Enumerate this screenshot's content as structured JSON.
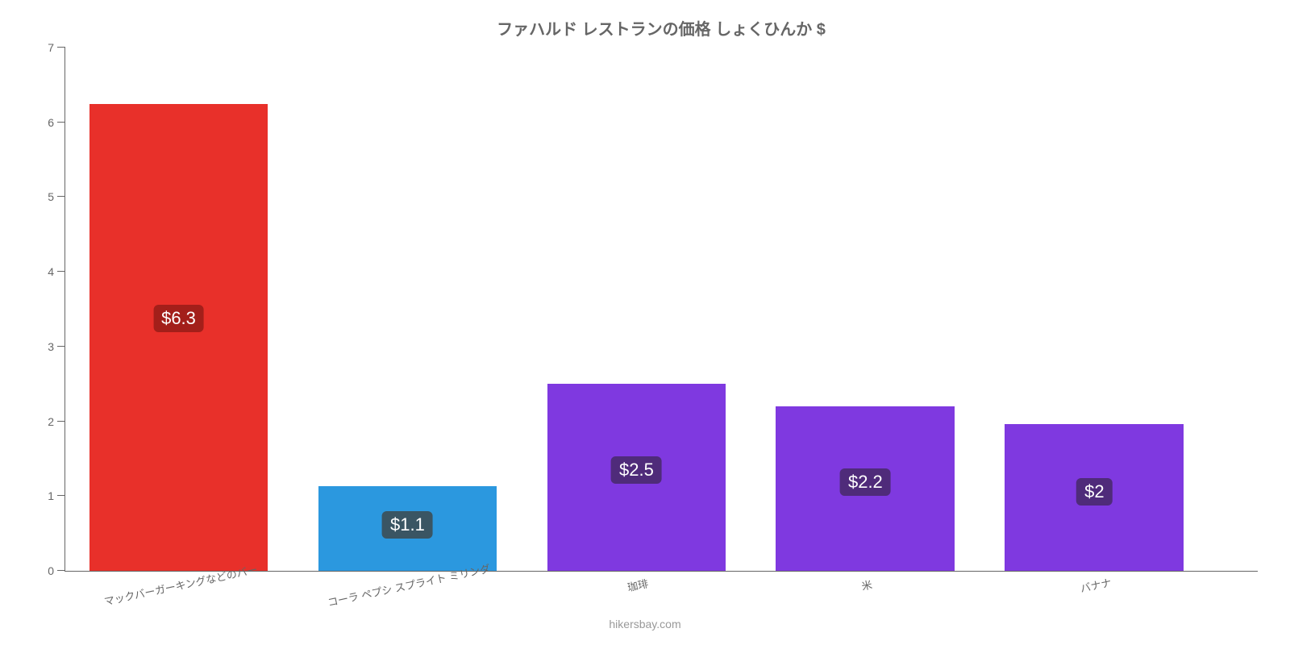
{
  "chart": {
    "type": "bar",
    "title": "ファハルド レストランの価格 しょくひんか $",
    "title_fontsize": 20,
    "title_color": "#666666",
    "background_color": "#ffffff",
    "axis_color": "#666666",
    "tick_label_color": "#666666",
    "tick_label_fontsize": 14,
    "x_label_fontsize": 13,
    "x_label_rotate_deg": -12,
    "ylim": [
      0,
      7
    ],
    "y_ticks": [
      0,
      1,
      2,
      3,
      4,
      5,
      6,
      7
    ],
    "plot_left_pct": 2,
    "plot_width_pct": 96,
    "bar_width_pct": 15,
    "bar_gap_pct": 4.2,
    "value_badge_fontsize": 22,
    "value_badge_radius": 6,
    "bars": [
      {
        "category": "マックバーガーキングなどのバー",
        "value": 6.25,
        "value_label": "$6.3",
        "bar_color": "#e8302a",
        "badge_bg": "#a31f1a"
      },
      {
        "category": "コーラ ペプシ スプライト ミリンダ",
        "value": 1.13,
        "value_label": "$1.1",
        "bar_color": "#2b98df",
        "badge_bg": "#3a5563"
      },
      {
        "category": "珈琲",
        "value": 2.5,
        "value_label": "$2.5",
        "bar_color": "#7f39e0",
        "badge_bg": "#4f2b7a"
      },
      {
        "category": "米",
        "value": 2.2,
        "value_label": "$2.2",
        "bar_color": "#7f39e0",
        "badge_bg": "#4f2b7a"
      },
      {
        "category": "バナナ",
        "value": 1.96,
        "value_label": "$2",
        "bar_color": "#7f39e0",
        "badge_bg": "#4f2b7a"
      }
    ],
    "attribution": "hikersbay.com",
    "attribution_fontsize": 14,
    "attribution_color": "#999999"
  }
}
